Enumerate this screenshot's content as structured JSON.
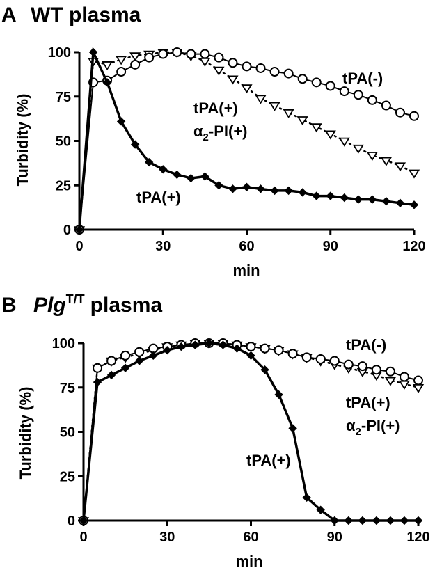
{
  "chart_data": [
    {
      "type": "line",
      "panel_label": "A",
      "title": "WT plasma",
      "xlabel": "min",
      "ylabel": "Turbidity (%)",
      "xlim": [
        0,
        120
      ],
      "ylim": [
        0,
        100
      ],
      "xticks": [
        "0",
        "30",
        "60",
        "90",
        "120"
      ],
      "yticks": [
        "0",
        "25",
        "50",
        "75",
        "100"
      ],
      "grid": false,
      "annotations": [
        {
          "text": "tPA(-)",
          "series": "tPA(-)"
        },
        {
          "text": "tPA(+)",
          "series": "tPA(+) α2-PI(+)",
          "line": 1
        },
        {
          "text": "α",
          "sub": "2",
          "rest": "-PI(+)",
          "series": "tPA(+) α2-PI(+)",
          "line": 2
        },
        {
          "text": "tPA(+)",
          "series": "tPA(+)"
        }
      ],
      "series": [
        {
          "name": "tPA(-)",
          "marker": "circle-open",
          "line": "solid-thin",
          "x": [
            0,
            5,
            10,
            15,
            20,
            25,
            30,
            35,
            40,
            45,
            50,
            55,
            60,
            65,
            70,
            75,
            80,
            85,
            90,
            95,
            100,
            105,
            110,
            115,
            120
          ],
          "values": [
            0,
            83,
            84,
            89,
            93,
            97,
            99,
            100,
            99,
            99,
            97,
            94,
            92,
            91,
            89,
            88,
            85,
            83,
            81,
            78,
            76,
            73,
            70,
            66,
            64
          ]
        },
        {
          "name": "tPA(+) α2-PI(+)",
          "marker": "triangle-down-open",
          "line": "dotted",
          "x": [
            0,
            5,
            10,
            15,
            20,
            25,
            30,
            35,
            40,
            45,
            50,
            55,
            60,
            65,
            70,
            75,
            80,
            85,
            90,
            95,
            100,
            105,
            110,
            115,
            120
          ],
          "values": [
            0,
            95,
            93,
            96,
            98,
            99,
            100,
            100,
            98,
            95,
            90,
            85,
            80,
            74,
            70,
            66,
            62,
            58,
            54,
            50,
            46,
            42,
            39,
            36,
            32
          ]
        },
        {
          "name": "tPA(+)",
          "marker": "diamond-filled",
          "line": "solid-thick",
          "x": [
            0,
            5,
            10,
            15,
            20,
            25,
            30,
            35,
            40,
            45,
            50,
            55,
            60,
            65,
            70,
            75,
            80,
            85,
            90,
            95,
            100,
            105,
            110,
            115,
            120
          ],
          "values": [
            0,
            100,
            83,
            61,
            48,
            38,
            34,
            31,
            29,
            30,
            25,
            23,
            24,
            23,
            22,
            22,
            21,
            19,
            19,
            18,
            17,
            17,
            16,
            15,
            14
          ]
        }
      ]
    },
    {
      "type": "line",
      "panel_label": "B",
      "title_italic": "Plg",
      "title_sup": "T/T",
      "title_rest": "plasma",
      "xlabel": "min",
      "ylabel": "Turbidity (%)",
      "xlim": [
        0,
        120
      ],
      "ylim": [
        0,
        100
      ],
      "xticks": [
        "0",
        "30",
        "60",
        "90",
        "120"
      ],
      "yticks": [
        "0",
        "25",
        "50",
        "75",
        "100"
      ],
      "grid": false,
      "annotations": [
        {
          "text": "tPA(-)",
          "series": "tPA(-)"
        },
        {
          "text": "tPA(+)",
          "series": "tPA(+) α2-PI(+)",
          "line": 1
        },
        {
          "text": "α",
          "sub": "2",
          "rest": "-PI(+)",
          "series": "tPA(+) α2-PI(+)",
          "line": 2
        },
        {
          "text": "tPA(+)",
          "series": "tPA(+)"
        }
      ],
      "series": [
        {
          "name": "tPA(-)",
          "marker": "circle-open",
          "line": "solid-thin",
          "x": [
            0,
            5,
            10,
            15,
            20,
            25,
            30,
            35,
            40,
            45,
            50,
            55,
            60,
            65,
            70,
            75,
            80,
            85,
            90,
            95,
            100,
            105,
            110,
            115,
            120
          ],
          "values": [
            0,
            86,
            90,
            93,
            95,
            97,
            98,
            99,
            100,
            100,
            100,
            99,
            98,
            97,
            96,
            94,
            92,
            91,
            90,
            88,
            87,
            85,
            84,
            81,
            79
          ]
        },
        {
          "name": "tPA(+) α2-PI(+)",
          "marker": "triangle-down-open",
          "line": "dotted",
          "x": [
            0,
            5,
            10,
            15,
            20,
            25,
            30,
            35,
            40,
            45,
            50,
            55,
            60,
            65,
            70,
            75,
            80,
            85,
            90,
            95,
            100,
            105,
            110,
            115,
            120
          ],
          "values": [
            0,
            86,
            90,
            92,
            94,
            96,
            98,
            99,
            100,
            100,
            100,
            99,
            98,
            97,
            96,
            94,
            92,
            90,
            88,
            86,
            84,
            82,
            79,
            77,
            75
          ]
        },
        {
          "name": "tPA(+)",
          "marker": "diamond-filled",
          "line": "solid-thick",
          "x": [
            0,
            5,
            10,
            15,
            20,
            25,
            30,
            35,
            40,
            45,
            50,
            55,
            60,
            65,
            70,
            75,
            80,
            85,
            90,
            95,
            100,
            105,
            110,
            115,
            120
          ],
          "values": [
            0,
            78,
            82,
            86,
            90,
            93,
            96,
            98,
            99,
            100,
            99,
            97,
            93,
            85,
            71,
            52,
            13,
            6,
            0,
            0,
            0,
            0,
            0,
            0,
            0
          ]
        }
      ]
    }
  ]
}
